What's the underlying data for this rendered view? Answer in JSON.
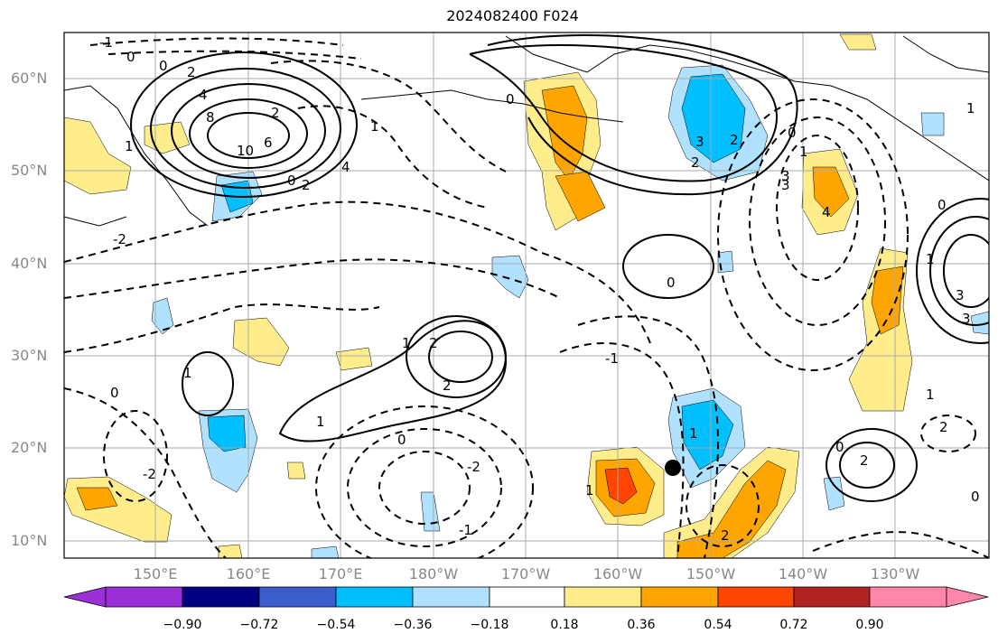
{
  "title": "2024082400 F024",
  "lat_labels": [
    "60°N",
    "50°N",
    "40°N",
    "30°N",
    "20°N",
    "10°N"
  ],
  "lon_labels": [
    "150°E",
    "160°E",
    "170°E",
    "180°W",
    "170°W",
    "160°W",
    "150°W",
    "140°W",
    "130°W"
  ],
  "colorbar": {
    "tick_labels": [
      "−0.90",
      "−0.72",
      "−0.54",
      "−0.36",
      "−0.18",
      "0.18",
      "0.36",
      "0.54",
      "0.72",
      "0.90"
    ],
    "colors": [
      "#9b30d9",
      "#000080",
      "#3a5fcd",
      "#00bfff",
      "#b0e2ff",
      "#ffffff",
      "#ffec8b",
      "#ffa500",
      "#ff4500",
      "#b22222",
      "#ff88aa"
    ]
  },
  "contour_labels": [
    "-1",
    "0",
    "0",
    "2",
    "4",
    "8",
    "10",
    "6",
    "2",
    "0",
    "2",
    "4",
    "1",
    "1",
    "-2",
    "0",
    "1",
    "3",
    "2",
    "3",
    "2",
    "0",
    "1",
    "3",
    "4",
    "3",
    "1",
    "0",
    "2",
    "1",
    "0",
    "2",
    "-1",
    "1",
    "0",
    "0",
    "1",
    "2",
    "-2",
    "1",
    "2",
    "-1",
    "0",
    "2",
    "1",
    "-2",
    "0",
    "1",
    "3"
  ],
  "marker": "station-dot",
  "colors": {
    "positive_contour": "#000000",
    "shading_positive": "#ffa500",
    "shading_negative": "#00bfff"
  }
}
